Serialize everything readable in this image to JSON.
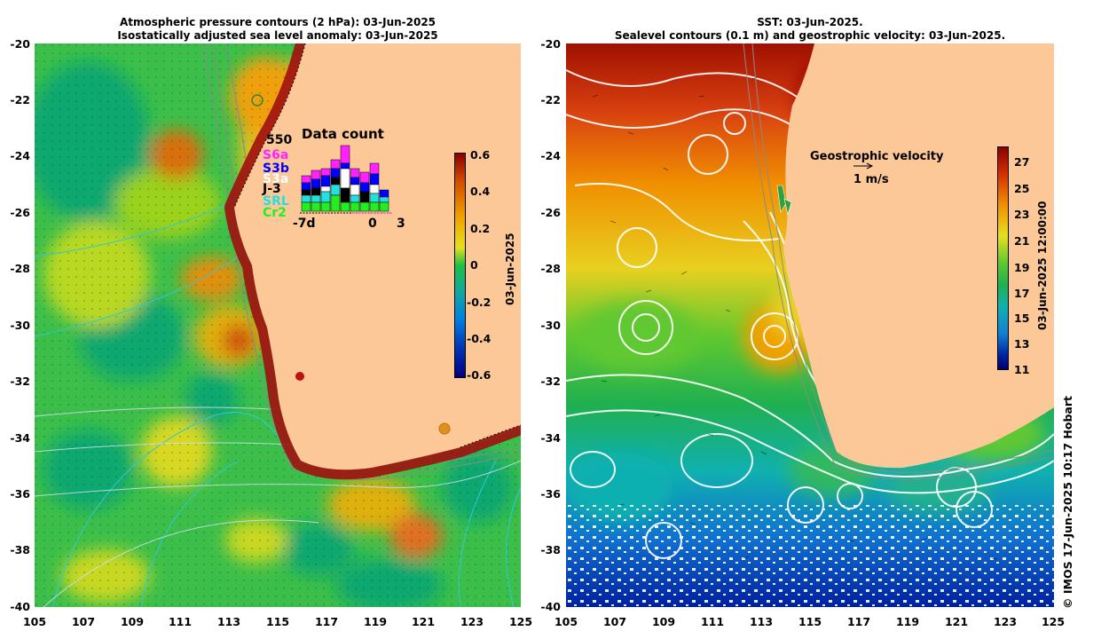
{
  "left": {
    "title_line1": "Atmospheric pressure contours (2 hPa): 03-Jun-2025",
    "title_line2": "Isostatically adjusted sea level anomaly: 03-Jun-2025",
    "colorbar": {
      "labels": [
        "0.6",
        "0.4",
        "0.2",
        "0",
        "-0.2",
        "-0.4",
        "-0.6"
      ],
      "date_label": "03-Jun-2025"
    },
    "data_count": {
      "title": "Data count",
      "max_label": "550",
      "satellites": [
        {
          "name": "S6a",
          "color": "#ff22ff"
        },
        {
          "name": "S3b",
          "color": "#0000ff"
        },
        {
          "name": "S3a",
          "color": "#ffffff"
        },
        {
          "name": "J-3",
          "color": "#000000"
        },
        {
          "name": "SRL",
          "color": "#22e0e0"
        },
        {
          "name": "Cr2",
          "color": "#22ee22"
        }
      ],
      "axis_labels": [
        "-7d",
        "0",
        "3"
      ]
    }
  },
  "right": {
    "title_line1": "SST: 03-Jun-2025.",
    "title_line2": "Sealevel contours (0.1 m) and geostrophic velocity: 03-Jun-2025.",
    "colorbar": {
      "labels": [
        "27",
        "25",
        "23",
        "21",
        "19",
        "17",
        "15",
        "13",
        "11"
      ],
      "date_label": "03-Jun-2025 12:00:00"
    },
    "velocity_legend": {
      "title": "Geostrophic velocity",
      "scale": "1 m/s"
    }
  },
  "axes": {
    "lat_labels": [
      "-20",
      "-22",
      "-24",
      "-26",
      "-28",
      "-30",
      "-32",
      "-34",
      "-36",
      "-38",
      "-40"
    ],
    "lon_labels": [
      "105",
      "107",
      "109",
      "111",
      "113",
      "115",
      "117",
      "119",
      "121",
      "123",
      "125"
    ]
  },
  "credit": "© IMOS 17-Jun-2025 10:17 Hobart",
  "colors": {
    "land": "#fcc898",
    "sla_ramp": [
      "#8b0000",
      "#d24a00",
      "#f0a000",
      "#e6e020",
      "#20c040",
      "#10a8a0",
      "#0060c0",
      "#000080"
    ],
    "sst_ramp": [
      "#8b0000",
      "#d23000",
      "#f09000",
      "#e6e020",
      "#30c040",
      "#10b0a0",
      "#1080d0",
      "#0020a0",
      "#000070"
    ]
  }
}
